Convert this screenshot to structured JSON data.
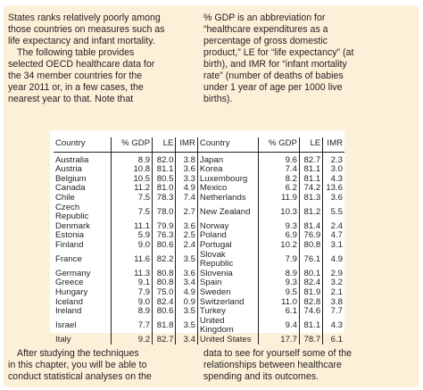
{
  "intro_left": {
    "line1": "States ranks relatively poorly among",
    "line2": "those countries on measures such as",
    "line3": "life expectancy and infant mortality.",
    "line4": "The following table provides",
    "line5": "selected OECD healthcare data for",
    "line6": "the 34 member countries for the",
    "line7": "year 2011 or, in a few cases, the",
    "line8": "nearest year to that. Note that"
  },
  "intro_right": {
    "line1": "% GDP is an abbreviation for",
    "line2": "“healthcare expenditures as a",
    "line3": "percentage of gross domestic",
    "line4": "product,” LE for “life expectancy” (at",
    "line5": "birth), and IMR for “infant mortality",
    "line6": "rate” (number of deaths of babies",
    "line7": "under 1 year of age per 1000 live",
    "line8": "births)."
  },
  "table": {
    "headers": {
      "country": "Country",
      "gdp": "% GDP",
      "le": "LE",
      "imr": "IMR"
    },
    "rows": [
      {
        "c1": "Australia",
        "g1": "8.9",
        "l1": "82.0",
        "i1": "3.8",
        "c2": "Japan",
        "g2": "9.6",
        "l2": "82.7",
        "i2": "2.3"
      },
      {
        "c1": "Austria",
        "g1": "10.8",
        "l1": "81.1",
        "i1": "3.6",
        "c2": "Korea",
        "g2": "7.4",
        "l2": "81.1",
        "i2": "3.0"
      },
      {
        "c1": "Belgium",
        "g1": "10.5",
        "l1": "80.5",
        "i1": "3.3",
        "c2": "Luxembourg",
        "g2": "8.2",
        "l2": "81.1",
        "i2": "4.3"
      },
      {
        "c1": "Canada",
        "g1": "11.2",
        "l1": "81.0",
        "i1": "4.9",
        "c2": "Mexico",
        "g2": "6.2",
        "l2": "74.2",
        "i2": "13.6"
      },
      {
        "c1": "Chile",
        "g1": "7.5",
        "l1": "78.3",
        "i1": "7.4",
        "c2": "Netherlands",
        "g2": "11.9",
        "l2": "81.3",
        "i2": "3.6"
      },
      {
        "c1": "Czech Republic",
        "g1": "7.5",
        "l1": "78.0",
        "i1": "2.7",
        "c2": "New Zealand",
        "g2": "10.3",
        "l2": "81.2",
        "i2": "5.5"
      },
      {
        "c1": "Denmark",
        "g1": "11.1",
        "l1": "79.9",
        "i1": "3.6",
        "c2": "Norway",
        "g2": "9.3",
        "l2": "81.4",
        "i2": "2.4"
      },
      {
        "c1": "Estonia",
        "g1": "5.9",
        "l1": "76.3",
        "i1": "2.5",
        "c2": "Poland",
        "g2": "6.9",
        "l2": "76.9",
        "i2": "4.7"
      },
      {
        "c1": "Finland",
        "g1": "9.0",
        "l1": "80.6",
        "i1": "2.4",
        "c2": "Portugal",
        "g2": "10.2",
        "l2": "80.8",
        "i2": "3.1"
      },
      {
        "c1": "France",
        "g1": "11.6",
        "l1": "82.2",
        "i1": "3.5",
        "c2": "Slovak Republic",
        "g2": "7.9",
        "l2": "76.1",
        "i2": "4.9"
      },
      {
        "c1": "Germany",
        "g1": "11.3",
        "l1": "80.8",
        "i1": "3.6",
        "c2": "Slovenia",
        "g2": "8.9",
        "l2": "80.1",
        "i2": "2.9"
      },
      {
        "c1": "Greece",
        "g1": "9.1",
        "l1": "80.8",
        "i1": "3.4",
        "c2": "Spain",
        "g2": "9.3",
        "l2": "82.4",
        "i2": "3.2"
      },
      {
        "c1": "Hungary",
        "g1": "7.9",
        "l1": "75.0",
        "i1": "4.9",
        "c2": "Sweden",
        "g2": "9.5",
        "l2": "81.9",
        "i2": "2.1"
      },
      {
        "c1": "Iceland",
        "g1": "9.0",
        "l1": "82.4",
        "i1": "0.9",
        "c2": "Switzerland",
        "g2": "11.0",
        "l2": "82.8",
        "i2": "3.8"
      },
      {
        "c1": "Ireland",
        "g1": "8.9",
        "l1": "80.6",
        "i1": "3.5",
        "c2": "Turkey",
        "g2": "6.1",
        "l2": "74.6",
        "i2": "7.7"
      },
      {
        "c1": "Israel",
        "g1": "7.7",
        "l1": "81.8",
        "i1": "3.5",
        "c2": "United Kingdom",
        "g2": "9.4",
        "l2": "81.1",
        "i2": "4.3"
      },
      {
        "c1": "Italy",
        "g1": "9.2",
        "l1": "82.7",
        "i1": "3.4",
        "c2": "United States",
        "g2": "17.7",
        "l2": "78.7",
        "i2": "6.1"
      }
    ]
  },
  "outro_left": {
    "line1": "After studying the techniques",
    "line2": "in this chapter, you will be able to",
    "line3": "conduct statistical analyses on the"
  },
  "outro_right": {
    "line1": "data to see for yourself some of the",
    "line2": "relationships between healthcare",
    "line3": "spending and its outcomes."
  }
}
